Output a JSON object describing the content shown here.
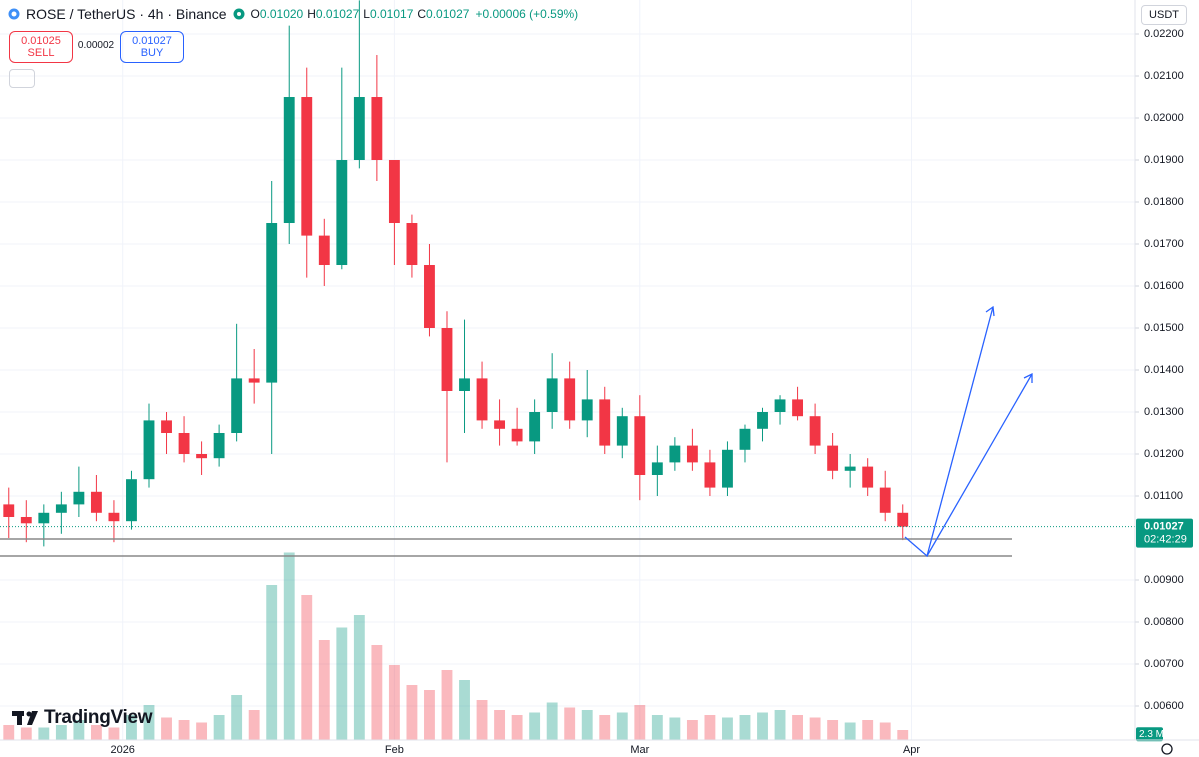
{
  "header": {
    "symbol": "ROSE / TetherUS · 4h · Binance",
    "ohlc": [
      {
        "label": "O",
        "value": "0.01020"
      },
      {
        "label": "H",
        "value": "0.01027"
      },
      {
        "label": "L",
        "value": "0.01017"
      },
      {
        "label": "C",
        "value": "0.01027"
      }
    ],
    "change": "+0.00006 (+0.59%)"
  },
  "trade": {
    "sell_price": "0.01025",
    "sell_label": "SELL",
    "spread": "0.00002",
    "buy_price": "0.01027",
    "buy_label": "BUY"
  },
  "currency": "USDT",
  "brand": "TradingView",
  "chart_data": {
    "type": "candlestick",
    "x": [
      -13,
      -11,
      -9,
      -7,
      -5,
      -3,
      -1,
      1,
      3,
      5,
      7,
      9,
      11,
      13,
      15,
      17,
      19,
      21,
      23,
      25,
      27,
      29,
      31,
      33,
      35,
      37,
      39,
      41,
      43,
      45,
      47,
      49,
      51,
      53,
      55,
      57,
      59,
      61,
      63,
      65,
      67,
      69,
      71,
      73,
      75,
      77,
      79,
      81,
      83,
      85,
      87,
      89
    ],
    "open": [
      0.0108,
      0.0105,
      0.01035,
      0.0106,
      0.0108,
      0.0111,
      0.0106,
      0.0104,
      0.0114,
      0.0128,
      0.0125,
      0.012,
      0.0119,
      0.0125,
      0.0138,
      0.0137,
      0.0175,
      0.0205,
      0.0172,
      0.0165,
      0.019,
      0.0205,
      0.019,
      0.0175,
      0.0165,
      0.015,
      0.0135,
      0.0138,
      0.0128,
      0.0126,
      0.0123,
      0.013,
      0.0138,
      0.0128,
      0.0133,
      0.0122,
      0.0129,
      0.0115,
      0.0118,
      0.0122,
      0.0118,
      0.0112,
      0.0121,
      0.0126,
      0.013,
      0.0133,
      0.0129,
      0.0122,
      0.0116,
      0.0117,
      0.0112,
      0.0106
    ],
    "high": [
      0.0112,
      0.0109,
      0.0108,
      0.0111,
      0.0117,
      0.0115,
      0.0109,
      0.0116,
      0.0132,
      0.013,
      0.0129,
      0.0123,
      0.0127,
      0.0151,
      0.0145,
      0.0185,
      0.0222,
      0.0212,
      0.0176,
      0.0212,
      0.0228,
      0.0215,
      0.019,
      0.0177,
      0.017,
      0.0154,
      0.0152,
      0.0142,
      0.0133,
      0.0131,
      0.0133,
      0.0144,
      0.0142,
      0.014,
      0.0136,
      0.0131,
      0.0134,
      0.0122,
      0.0124,
      0.0126,
      0.0121,
      0.0123,
      0.0127,
      0.0131,
      0.0134,
      0.0136,
      0.0132,
      0.0125,
      0.012,
      0.0119,
      0.0116,
      0.0108
    ],
    "low": [
      0.01,
      0.0099,
      0.0098,
      0.0101,
      0.0105,
      0.0104,
      0.0099,
      0.0102,
      0.0112,
      0.012,
      0.0118,
      0.0115,
      0.0117,
      0.0123,
      0.0132,
      0.012,
      0.017,
      0.0162,
      0.016,
      0.0164,
      0.0188,
      0.0185,
      0.0165,
      0.0162,
      0.0148,
      0.0118,
      0.0125,
      0.0126,
      0.0122,
      0.0122,
      0.012,
      0.0126,
      0.0126,
      0.0124,
      0.012,
      0.0119,
      0.0109,
      0.011,
      0.0116,
      0.0116,
      0.011,
      0.011,
      0.0118,
      0.0123,
      0.0127,
      0.0128,
      0.012,
      0.0114,
      0.0112,
      0.011,
      0.0104,
      0.00995
    ],
    "close": [
      0.0105,
      0.01035,
      0.0106,
      0.0108,
      0.0111,
      0.0106,
      0.0104,
      0.0114,
      0.0128,
      0.0125,
      0.012,
      0.0119,
      0.0125,
      0.0138,
      0.0137,
      0.0175,
      0.0205,
      0.0172,
      0.0165,
      0.019,
      0.0205,
      0.019,
      0.0175,
      0.0165,
      0.015,
      0.0135,
      0.0138,
      0.0128,
      0.0126,
      0.0123,
      0.013,
      0.0138,
      0.0128,
      0.0133,
      0.0122,
      0.0129,
      0.0115,
      0.0118,
      0.0122,
      0.0118,
      0.0112,
      0.0121,
      0.0126,
      0.013,
      0.0133,
      0.0129,
      0.0122,
      0.0116,
      0.0117,
      0.0112,
      0.0106,
      0.01027
    ],
    "volume": [
      6,
      5,
      5,
      6,
      8,
      6,
      5,
      10,
      14,
      9,
      8,
      7,
      10,
      18,
      12,
      62,
      75,
      58,
      40,
      45,
      50,
      38,
      30,
      22,
      20,
      28,
      24,
      16,
      12,
      10,
      11,
      15,
      13,
      12,
      10,
      11,
      14,
      10,
      9,
      8,
      10,
      9,
      10,
      11,
      12,
      10,
      9,
      8,
      7,
      8,
      7,
      4
    ],
    "volume_lim": [
      0,
      80
    ],
    "volume_tag": {
      "value": 2.3,
      "label": "2.3 M"
    },
    "up_color": "#089981",
    "down_color": "#f23645",
    "xlim": [
      -14,
      115.5
    ],
    "xticks": [
      {
        "value": 0,
        "label": "2026"
      },
      {
        "value": 31,
        "label": "Feb"
      },
      {
        "value": 59,
        "label": "Mar"
      },
      {
        "value": 90,
        "label": "Apr"
      }
    ],
    "ylim": [
      0.00519,
      0.02281
    ],
    "yticks": [
      {
        "value": 0.006,
        "label": "0.00600"
      },
      {
        "value": 0.007,
        "label": "0.00700"
      },
      {
        "value": 0.008,
        "label": "0.00800"
      },
      {
        "value": 0.009,
        "label": "0.00900"
      },
      {
        "value": 0.011,
        "label": "0.01100"
      },
      {
        "value": 0.012,
        "label": "0.01200"
      },
      {
        "value": 0.013,
        "label": "0.01300"
      },
      {
        "value": 0.014,
        "label": "0.01400"
      },
      {
        "value": 0.015,
        "label": "0.01500"
      },
      {
        "value": 0.016,
        "label": "0.01600"
      },
      {
        "value": 0.017,
        "label": "0.01700"
      },
      {
        "value": 0.018,
        "label": "0.01800"
      },
      {
        "value": 0.019,
        "label": "0.01900"
      },
      {
        "value": 0.02,
        "label": "0.02000"
      },
      {
        "value": 0.021,
        "label": "0.02100"
      },
      {
        "value": 0.022,
        "label": "0.02200"
      }
    ],
    "grid": true,
    "last_price": {
      "value": 0.01027,
      "label": "0.01027"
    },
    "countdown": "02:42:29"
  }
}
